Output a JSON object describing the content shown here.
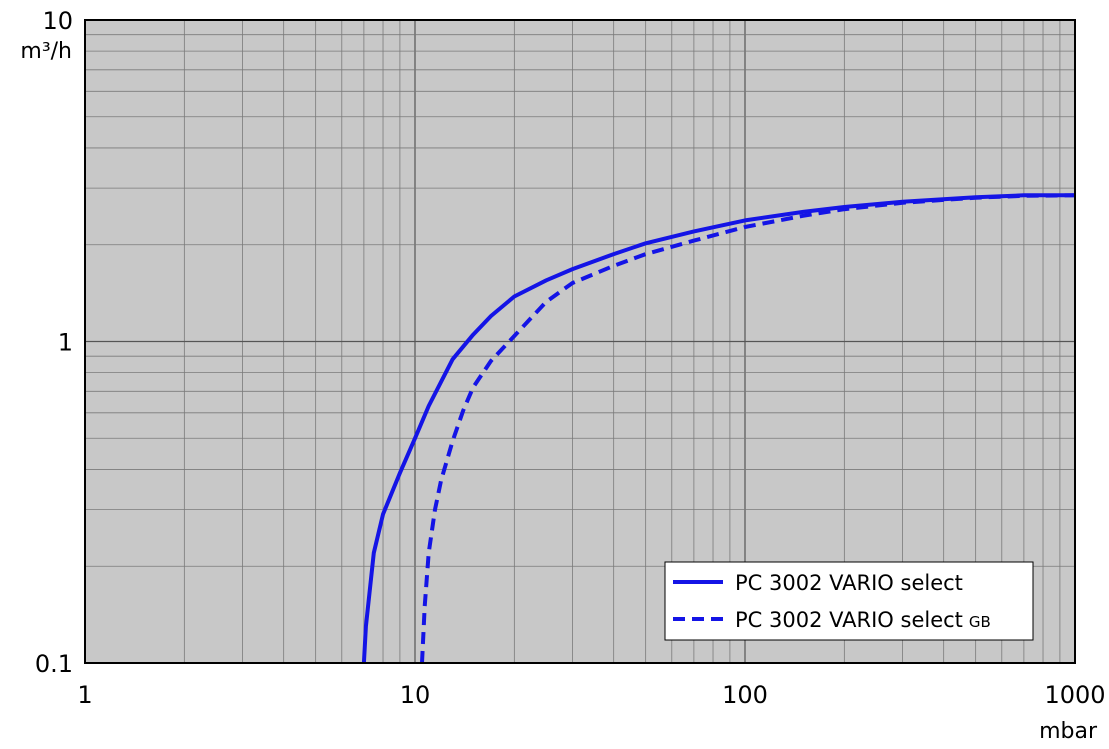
{
  "chart_data": {
    "type": "line",
    "xscale": "log",
    "yscale": "log",
    "xlim": [
      1,
      1000
    ],
    "ylim": [
      0.1,
      10
    ],
    "xticks": [
      "1",
      "10",
      "100",
      "1000"
    ],
    "yticks": [
      "0.1",
      "1",
      "10"
    ],
    "xunit": "mbar",
    "yunit": "m³/h",
    "grid": true,
    "legend_position": "bottom-right",
    "plot_background": "#c8c8c8",
    "series": [
      {
        "name": "PC 3002 VARIO select",
        "style": "solid",
        "color": "#1414e6",
        "x": [
          7.0,
          7.1,
          7.5,
          8.0,
          9.0,
          10.0,
          11.0,
          13.0,
          15.0,
          17.0,
          20.0,
          25.0,
          30.0,
          40.0,
          50.0,
          70.0,
          100.0,
          150.0,
          200.0,
          300.0,
          500.0,
          700.0,
          1000.0
        ],
        "y": [
          0.1,
          0.13,
          0.22,
          0.29,
          0.39,
          0.5,
          0.63,
          0.88,
          1.05,
          1.2,
          1.38,
          1.55,
          1.68,
          1.87,
          2.02,
          2.2,
          2.38,
          2.53,
          2.62,
          2.72,
          2.81,
          2.85,
          2.85
        ]
      },
      {
        "name": "PC 3002 VARIO select",
        "name_suffix": "GB",
        "style": "dashed",
        "color": "#1414e6",
        "x": [
          10.5,
          10.7,
          11.0,
          11.5,
          12.0,
          13.0,
          14.0,
          15.0,
          17.0,
          20.0,
          25.0,
          30.0,
          40.0,
          50.0,
          70.0,
          100.0,
          150.0,
          200.0,
          300.0,
          500.0,
          700.0,
          1000.0
        ],
        "y": [
          0.1,
          0.15,
          0.22,
          0.3,
          0.37,
          0.49,
          0.61,
          0.72,
          0.87,
          1.04,
          1.33,
          1.52,
          1.72,
          1.87,
          2.06,
          2.27,
          2.46,
          2.58,
          2.7,
          2.8,
          2.84,
          2.85
        ]
      }
    ]
  }
}
